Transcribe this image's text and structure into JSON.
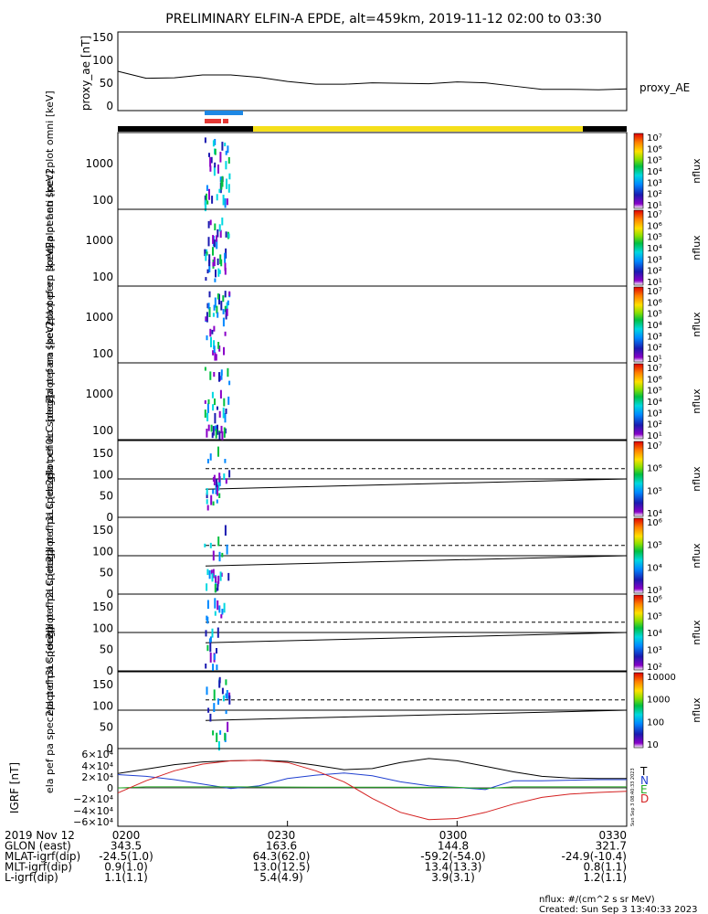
{
  "title": "PRELIMINARY ELFIN-A EPDE, alt=459km, 2019-11-12 02:00 to 03:30",
  "colors": {
    "bar_black": "#000000",
    "bar_yellow": "#f5df1a",
    "bar_blue": "#1e88e5",
    "bar_red": "#e53935",
    "igrf_T": "#000000",
    "igrf_N": "#1f3fd0",
    "igrf_E": "#22a822",
    "igrf_D": "#d42020"
  },
  "chart_data": [
    {
      "type": "line",
      "id": "proxy_ae",
      "ylabel": "proxy_ae [nT]",
      "legend": "proxy_AE",
      "ylim": [
        -10,
        160
      ],
      "yticks": [
        "150",
        "100",
        "50",
        "0"
      ],
      "x_minutes": [
        0,
        5,
        10,
        15,
        20,
        25,
        30,
        35,
        40,
        45,
        50,
        55,
        60,
        65,
        70,
        75,
        80,
        85,
        90
      ],
      "values": [
        75,
        60,
        61,
        67,
        67,
        62,
        53,
        47,
        47,
        50,
        49,
        48,
        52,
        50,
        43,
        36,
        36,
        35,
        37
      ]
    },
    {
      "type": "heatmap",
      "id": "en_omni",
      "ylabel": "ela pef en spec2plot omni [keV]",
      "yticks": [
        "1000",
        "100"
      ],
      "zlabel": "nflux",
      "zticks": [
        "10⁷",
        "10⁶",
        "10⁵",
        "10⁴",
        "10³",
        "10²",
        "10¹"
      ]
    },
    {
      "type": "heatmap",
      "id": "en_anti",
      "ylabel": "ela pef en spec2plot anti [keV]",
      "yticks": [
        "1000",
        "100"
      ],
      "zlabel": "nflux",
      "zticks": [
        "10⁷",
        "10⁶",
        "10⁵",
        "10⁴",
        "10³",
        "10²",
        "10¹"
      ]
    },
    {
      "type": "heatmap",
      "id": "en_perp",
      "ylabel": "ela pef en spec2plot perp [keV]",
      "yticks": [
        "1000",
        "100"
      ],
      "zlabel": "nflux",
      "zticks": [
        "10⁷",
        "10⁶",
        "10⁵",
        "10⁴",
        "10³",
        "10²",
        "10¹"
      ]
    },
    {
      "type": "heatmap",
      "id": "en_para",
      "ylabel": "ela pef en spec2plot para [keV]",
      "yticks": [
        "1000",
        "100"
      ],
      "zlabel": "nflux",
      "zticks": [
        "10⁷",
        "10⁶",
        "10⁵",
        "10⁴",
        "10³",
        "10²",
        "10¹"
      ]
    },
    {
      "type": "heatmap",
      "id": "pa_ch0",
      "ylabel": "ela pef pa spec2plot ch0LC [deg]",
      "yticks": [
        "150",
        "100",
        "50",
        "0"
      ],
      "zlabel": "nflux",
      "zticks": [
        "10⁷",
        "10⁶",
        "10⁵",
        "10⁴"
      ]
    },
    {
      "type": "heatmap",
      "id": "pa_ch1",
      "ylabel": "ela pef pa spec2plot ch1LC [deg]",
      "yticks": [
        "150",
        "100",
        "50",
        "0"
      ],
      "zlabel": "nflux",
      "zticks": [
        "10⁶",
        "10⁵",
        "10⁴",
        "10³"
      ]
    },
    {
      "type": "heatmap",
      "id": "pa_ch2",
      "ylabel": "ela pef pa spec2plot ch2LC [deg]",
      "yticks": [
        "150",
        "100",
        "50",
        "0"
      ],
      "zlabel": "nflux",
      "zticks": [
        "10⁶",
        "10⁵",
        "10⁴",
        "10³",
        "10²"
      ]
    },
    {
      "type": "heatmap",
      "id": "pa_ch3",
      "ylabel": "ela pef pa spec2plot ch3LC [deg]",
      "yticks": [
        "150",
        "100",
        "50",
        "0"
      ],
      "zlabel": "nflux",
      "zticks": [
        "10000",
        "1000",
        "100",
        "10"
      ]
    },
    {
      "type": "line",
      "id": "igrf",
      "ylabel": "IGRF [nT]",
      "ylim": [
        -70000,
        70000
      ],
      "yticks": [
        "6×10⁴",
        "4×10⁴",
        "2×10⁴",
        "0",
        "−2×10⁴",
        "−4×10⁴",
        "−6×10⁴"
      ],
      "x_minutes": [
        0,
        5,
        10,
        15,
        20,
        25,
        30,
        35,
        40,
        45,
        50,
        55,
        60,
        65,
        70,
        75,
        80,
        85,
        90
      ],
      "series": [
        {
          "name": "T",
          "values": [
            25000,
            33000,
            41000,
            46000,
            48000,
            49000,
            47000,
            40000,
            32000,
            34000,
            45000,
            52000,
            48000,
            38000,
            28000,
            20000,
            17000,
            16000,
            16000
          ]
        },
        {
          "name": "N",
          "values": [
            23000,
            20000,
            14000,
            6000,
            -2000,
            3000,
            16000,
            22000,
            26000,
            21000,
            10000,
            3000,
            0,
            -4000,
            12000,
            12000,
            13000,
            14000,
            14000
          ]
        },
        {
          "name": "E",
          "values": [
            -1000,
            1000,
            1000,
            1000,
            1000,
            800,
            600,
            500,
            500,
            400,
            300,
            200,
            100,
            -2000,
            1000,
            1000,
            1000,
            1000,
            1000
          ]
        },
        {
          "name": "D",
          "values": [
            -10000,
            12000,
            30000,
            42000,
            48000,
            49000,
            45000,
            30000,
            10000,
            -20000,
            -45000,
            -58000,
            -56000,
            -45000,
            -30000,
            -18000,
            -12000,
            -9000,
            -7000
          ]
        }
      ]
    }
  ],
  "time_axis": {
    "ticks": [
      "0200",
      "0230",
      "0300",
      "0330"
    ]
  },
  "orbit_table": {
    "rows": [
      {
        "label": "2019 Nov 12",
        "values": [
          "0200",
          "0230",
          "0300",
          "0330"
        ]
      },
      {
        "label": "GLON (east)",
        "values": [
          "343.5",
          "163.6",
          "144.8",
          "321.7"
        ]
      },
      {
        "label": "MLAT-igrf(dip)",
        "values": [
          "-24.5(1.0)",
          "64.3(62.0)",
          "-59.2(-54.0)",
          "-24.9(-10.4)"
        ]
      },
      {
        "label": "MLT-igrf(dip)",
        "values": [
          "0.9(1.0)",
          "13.0(12.5)",
          "13.4(13.3)",
          "0.8(1.1)"
        ]
      },
      {
        "label": "L-igrf(dip)",
        "values": [
          "1.1(1.1)",
          "5.4(4.9)",
          "3.9(3.1)",
          "1.2(1.1)"
        ]
      }
    ]
  },
  "footer": {
    "units": "nflux: #/(cm^2 s sr MeV)",
    "created": "Created: Sun Sep  3 13:40:33 2023",
    "stamp": "Sun Sep  3 08:40:33 2023"
  }
}
